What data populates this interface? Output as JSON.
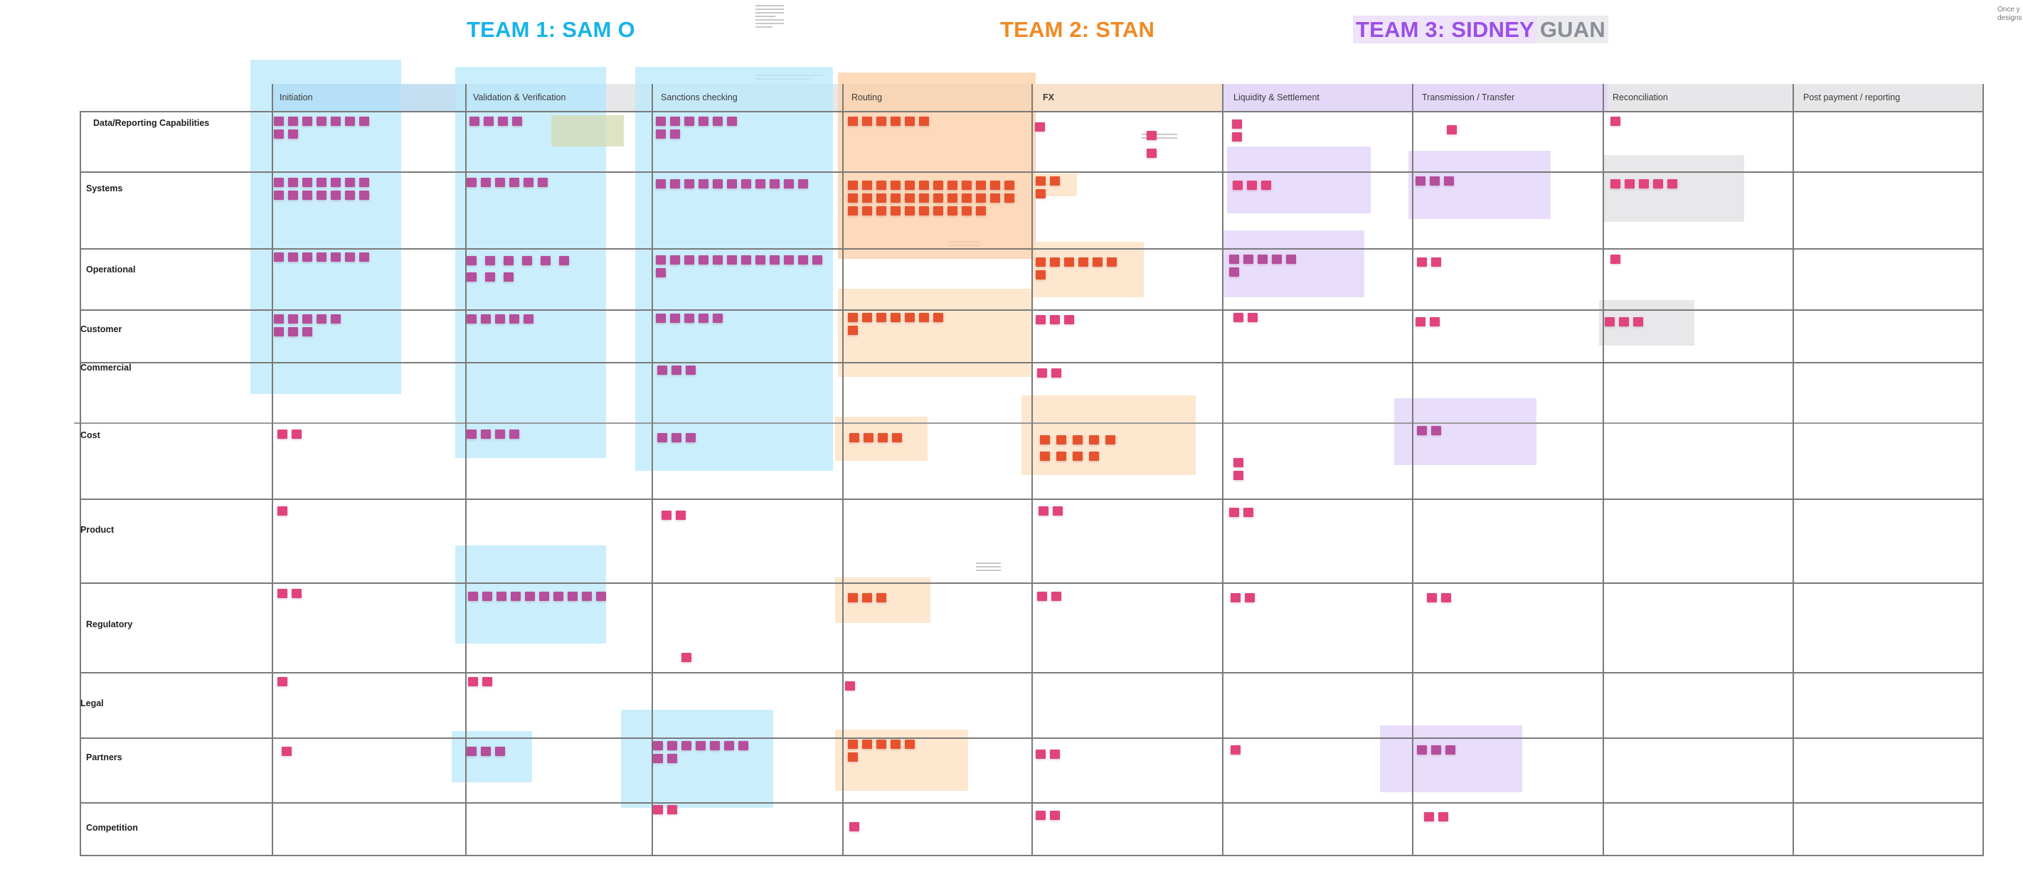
{
  "teams": {
    "team1": "TEAM 1: SAM O",
    "team2": "TEAM 2: STAN",
    "team3_a": "TEAM 3: SIDNEY",
    "team3_b": "GUAN"
  },
  "corner_note": [
    "Once y",
    "designs"
  ],
  "columns": [
    "Initiation",
    "Validation & Verification",
    "Sanctions checking",
    "Routing",
    "FX",
    "Liquidity & Settlement",
    "Transmission / Transfer",
    "Reconciliation",
    "Post payment / reporting"
  ],
  "rows": [
    "Data/Reporting Capabilities",
    "Systems",
    "Operational",
    "Customer",
    "Commercial",
    "Cost",
    "Product",
    "Regulatory",
    "Legal",
    "Partners",
    "Competition"
  ],
  "colors": {
    "team1": "#18b3e8",
    "team2": "#f08a24",
    "team3": "#9b4ee6",
    "team3_extra": "#8a8f98",
    "sticky": "#e1437d"
  }
}
